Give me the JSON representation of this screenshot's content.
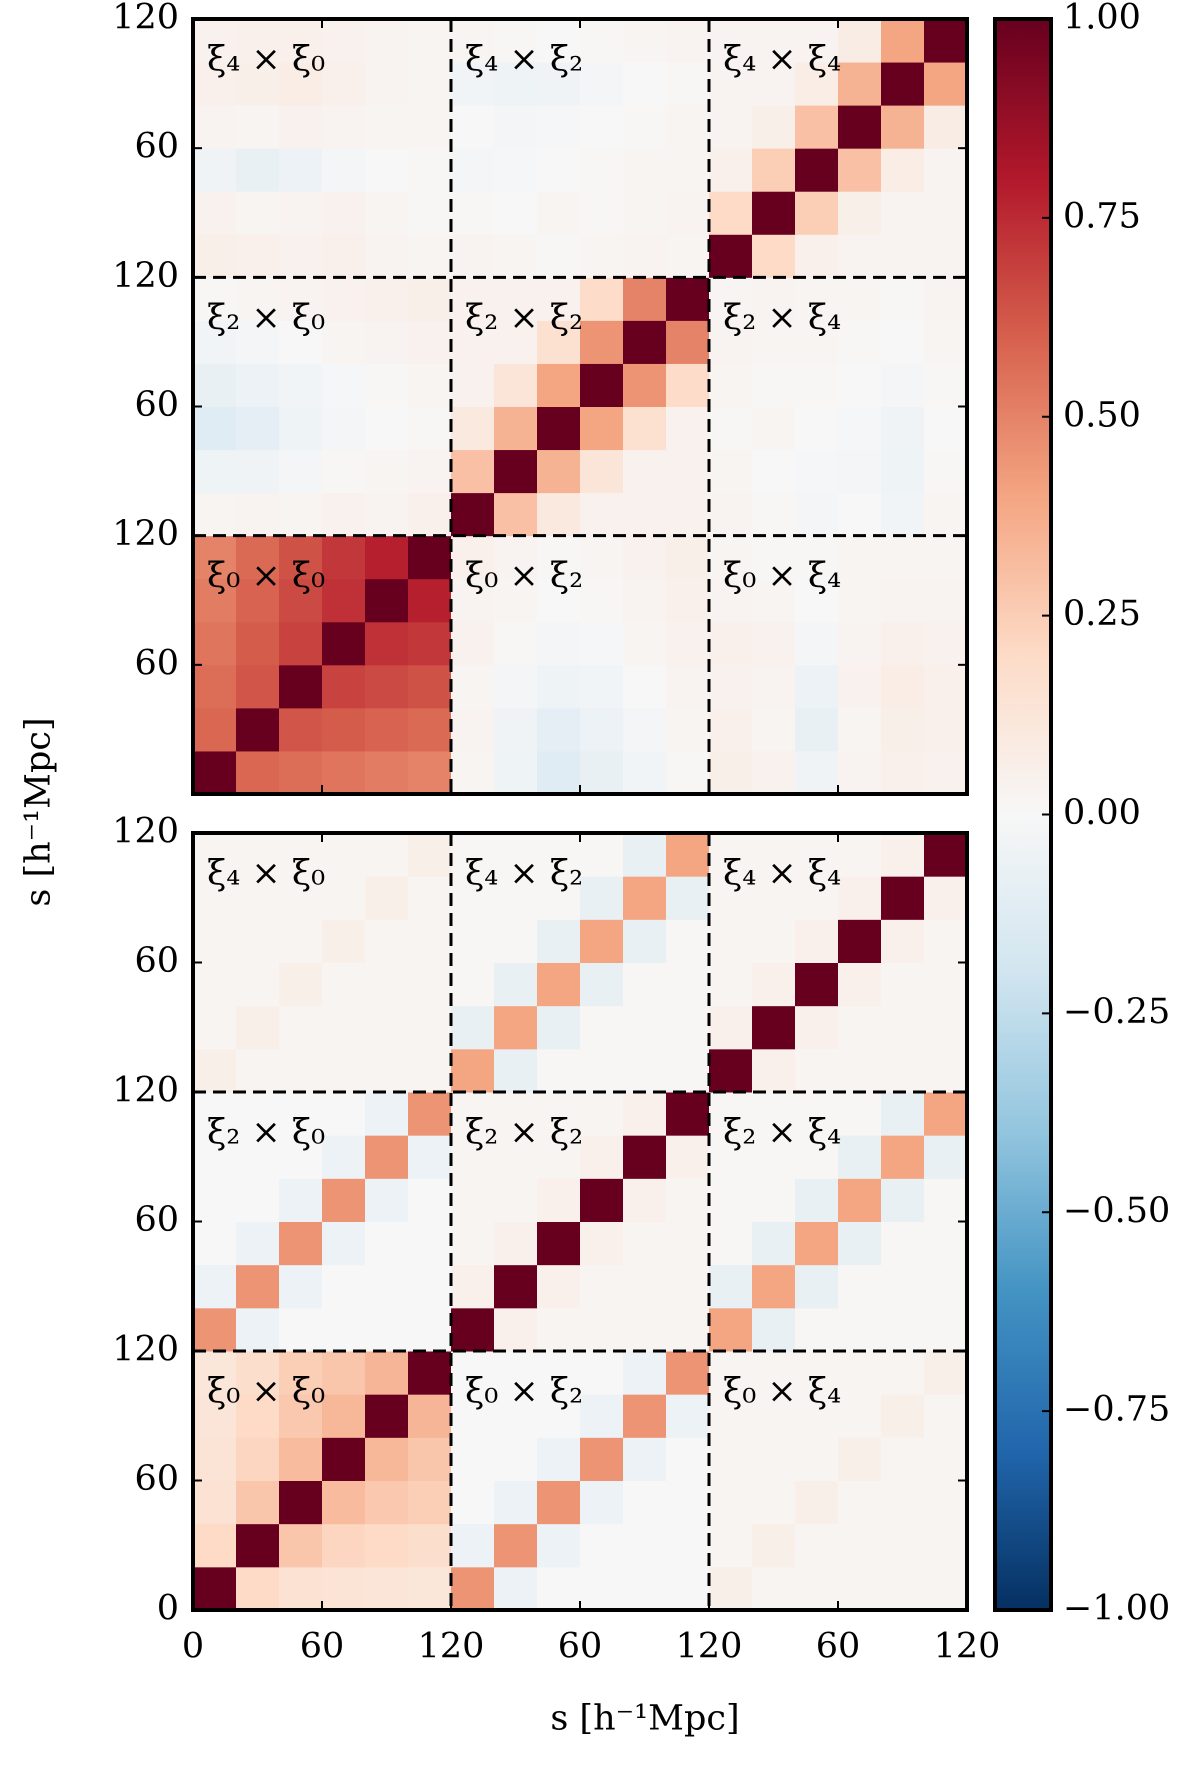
{
  "chart_data": [
    {
      "type": "heatmap",
      "xlim": [
        0,
        360
      ],
      "ylim": [
        0,
        360
      ],
      "yticks": [
        60,
        120,
        {
          "value": 180,
          "label": "60"
        },
        {
          "value": 240,
          "label": "120"
        },
        {
          "value": 300,
          "label": "60"
        },
        {
          "value": 360,
          "label": "120"
        }
      ],
      "dividers": [
        120,
        240
      ],
      "annotations": [
        "ξ₄ × ξ₀",
        "ξ₄ × ξ₂",
        "ξ₄ × ξ₄",
        "ξ₂ × ξ₀",
        "ξ₂ × ξ₂",
        "ξ₂ × ξ₄",
        "ξ₀ × ξ₀",
        "ξ₀ × ξ₂",
        "ξ₀ × ξ₄"
      ],
      "values": [
        [
          1,
          0.58,
          0.56,
          0.54,
          0.52,
          0.5,
          0.02,
          -0.05,
          -0.12,
          -0.08,
          -0.03,
          0.01,
          0.06,
          0.04,
          -0.04,
          0.03,
          0.05,
          0.04
        ],
        [
          0.58,
          1,
          0.63,
          0.61,
          0.59,
          0.57,
          0.03,
          -0.04,
          -0.1,
          -0.06,
          -0.02,
          0.02,
          0.05,
          0.02,
          -0.08,
          0.02,
          0.06,
          0.05
        ],
        [
          0.56,
          0.63,
          1,
          0.68,
          0.66,
          0.64,
          0.02,
          -0.02,
          -0.05,
          -0.03,
          0,
          0.03,
          0.04,
          0.03,
          -0.06,
          0.04,
          0.07,
          0.05
        ],
        [
          0.54,
          0.61,
          0.68,
          1,
          0.73,
          0.71,
          0.04,
          0.01,
          -0.02,
          -0.01,
          0.02,
          0.04,
          0.05,
          0.04,
          -0.02,
          0.03,
          0.05,
          0.04
        ],
        [
          0.52,
          0.59,
          0.66,
          0.73,
          1,
          0.78,
          0.03,
          0.02,
          0,
          0.01,
          0.03,
          0.05,
          0.03,
          0.02,
          0,
          0.02,
          0.03,
          0.03
        ],
        [
          0.5,
          0.57,
          0.64,
          0.71,
          0.78,
          1,
          0.05,
          0.03,
          0.01,
          0.02,
          0.04,
          0.06,
          0.02,
          0.01,
          0.01,
          0.02,
          0.02,
          0.02
        ],
        [
          0.02,
          0.03,
          0.02,
          0.04,
          0.03,
          0.05,
          1,
          0.3,
          0.1,
          0.04,
          0.04,
          0.04,
          0.03,
          0.01,
          -0.02,
          0,
          -0.03,
          0.02
        ],
        [
          -0.05,
          -0.04,
          -0.02,
          0.01,
          0.02,
          0.03,
          0.3,
          1,
          0.35,
          0.13,
          0.04,
          0.04,
          0.02,
          0,
          -0.01,
          -0.02,
          -0.05,
          0.01
        ],
        [
          -0.12,
          -0.1,
          -0.05,
          -0.02,
          0,
          0.01,
          0.1,
          0.35,
          1,
          0.4,
          0.16,
          0.04,
          0.01,
          0.02,
          0,
          -0.01,
          -0.04,
          0
        ],
        [
          -0.08,
          -0.06,
          -0.03,
          -0.01,
          0.01,
          0.02,
          0.04,
          0.13,
          0.4,
          1,
          0.45,
          0.19,
          0.02,
          0.01,
          0.01,
          0,
          -0.02,
          0.01
        ],
        [
          -0.03,
          -0.02,
          0,
          0.02,
          0.03,
          0.04,
          0.04,
          0.04,
          0.16,
          0.45,
          1,
          0.5,
          0.03,
          0.02,
          0.02,
          0.01,
          0,
          0.02
        ],
        [
          0.01,
          0.02,
          0.03,
          0.04,
          0.05,
          0.06,
          0.04,
          0.04,
          0.04,
          0.19,
          0.5,
          1,
          0.02,
          0.03,
          0.02,
          0.02,
          0.01,
          0.03
        ],
        [
          0.06,
          0.05,
          0.04,
          0.05,
          0.03,
          0.02,
          0.03,
          0.02,
          0.01,
          0.02,
          0.03,
          0.02,
          1,
          0.2,
          0.05,
          0.03,
          0.03,
          0.03
        ],
        [
          0.04,
          0.02,
          0.03,
          0.04,
          0.02,
          0.01,
          0.01,
          0,
          0.02,
          0.01,
          0.02,
          0.03,
          0.2,
          1,
          0.25,
          0.06,
          0.03,
          0.03
        ],
        [
          -0.04,
          -0.08,
          -0.06,
          -0.02,
          0,
          0.01,
          -0.02,
          -0.01,
          0,
          0.01,
          0.02,
          0.02,
          0.05,
          0.25,
          1,
          0.3,
          0.07,
          0.03
        ],
        [
          0.03,
          0.02,
          0.04,
          0.03,
          0.02,
          0.02,
          0,
          -0.02,
          -0.01,
          0,
          0.01,
          0.02,
          0.03,
          0.06,
          0.3,
          1,
          0.35,
          0.08
        ],
        [
          0.05,
          0.06,
          0.07,
          0.05,
          0.03,
          0.02,
          -0.03,
          -0.05,
          -0.04,
          -0.02,
          0,
          0.01,
          0.03,
          0.03,
          0.07,
          0.35,
          1,
          0.4
        ],
        [
          0.04,
          0.05,
          0.05,
          0.04,
          0.03,
          0.02,
          0.02,
          0.01,
          0,
          0.01,
          0.02,
          0.03,
          0.03,
          0.03,
          0.03,
          0.08,
          0.4,
          1
        ]
      ]
    },
    {
      "type": "heatmap",
      "xlim": [
        0,
        360
      ],
      "ylim": [
        0,
        360
      ],
      "xticks": [
        0,
        60,
        120,
        {
          "value": 180,
          "label": "60"
        },
        {
          "value": 240,
          "label": "120"
        },
        {
          "value": 300,
          "label": "60"
        },
        {
          "value": 360,
          "label": "120"
        }
      ],
      "yticks": [
        0,
        60,
        120,
        {
          "value": 180,
          "label": "60"
        },
        {
          "value": 240,
          "label": "120"
        },
        {
          "value": 300,
          "label": "60"
        },
        {
          "value": 360,
          "label": "120"
        }
      ],
      "dividers": [
        120,
        240
      ],
      "annotations": [
        "ξ₄ × ξ₀",
        "ξ₄ × ξ₂",
        "ξ₄ × ξ₄",
        "ξ₂ × ξ₀",
        "ξ₂ × ξ₂",
        "ξ₂ × ξ₄",
        "ξ₀ × ξ₀",
        "ξ₀ × ξ₂",
        "ξ₀ × ξ₄"
      ],
      "values": [
        [
          1,
          0.2,
          0.15,
          0.14,
          0.13,
          0.12,
          0.45,
          -0.06,
          0,
          0,
          0,
          0,
          0.06,
          0.02,
          0.02,
          0.02,
          0.02,
          0.02
        ],
        [
          0.2,
          1,
          0.28,
          0.22,
          0.2,
          0.18,
          -0.06,
          0.45,
          -0.06,
          0,
          0,
          0,
          0.02,
          0.06,
          0.02,
          0.02,
          0.02,
          0.02
        ],
        [
          0.15,
          0.28,
          1,
          0.32,
          0.27,
          0.25,
          0,
          -0.06,
          0.45,
          -0.06,
          0,
          0,
          0.02,
          0.02,
          0.06,
          0.02,
          0.02,
          0.02
        ],
        [
          0.14,
          0.22,
          0.32,
          1,
          0.33,
          0.28,
          0,
          0,
          -0.06,
          0.45,
          -0.06,
          0,
          0.02,
          0.02,
          0.02,
          0.06,
          0.02,
          0.02
        ],
        [
          0.13,
          0.2,
          0.27,
          0.33,
          1,
          0.34,
          0,
          0,
          0,
          -0.06,
          0.45,
          -0.06,
          0.02,
          0.02,
          0.02,
          0.02,
          0.06,
          0.02
        ],
        [
          0.12,
          0.18,
          0.25,
          0.28,
          0.34,
          1,
          0,
          0,
          0,
          0,
          -0.06,
          0.45,
          0.02,
          0.02,
          0.02,
          0.02,
          0.02,
          0.06
        ],
        [
          0.45,
          -0.06,
          0,
          0,
          0,
          0,
          1,
          0.05,
          0.02,
          0.02,
          0.02,
          0.02,
          0.4,
          -0.08,
          0.01,
          0.01,
          0.01,
          0.01
        ],
        [
          -0.06,
          0.45,
          -0.06,
          0,
          0,
          0,
          0.05,
          1,
          0.05,
          0.02,
          0.02,
          0.02,
          -0.08,
          0.4,
          -0.08,
          0.01,
          0.01,
          0.01
        ],
        [
          0,
          -0.06,
          0.45,
          -0.06,
          0,
          0,
          0.02,
          0.05,
          1,
          0.05,
          0.02,
          0.02,
          0.01,
          -0.08,
          0.4,
          -0.08,
          0.01,
          0.01
        ],
        [
          0,
          0,
          -0.06,
          0.45,
          -0.06,
          0,
          0.02,
          0.02,
          0.05,
          1,
          0.05,
          0.02,
          0.01,
          0.01,
          -0.08,
          0.4,
          -0.08,
          0.01
        ],
        [
          0,
          0,
          0,
          -0.06,
          0.45,
          -0.06,
          0.02,
          0.02,
          0.02,
          0.05,
          1,
          0.05,
          0.01,
          0.01,
          0.01,
          -0.08,
          0.4,
          -0.08
        ],
        [
          0,
          0,
          0,
          0,
          -0.06,
          0.45,
          0.02,
          0.02,
          0.02,
          0.02,
          0.05,
          1,
          0.01,
          0.01,
          0.01,
          0.01,
          -0.08,
          0.4
        ],
        [
          0.06,
          0.02,
          0.02,
          0.02,
          0.02,
          0.02,
          0.4,
          -0.08,
          0.01,
          0.01,
          0.01,
          0.01,
          1,
          0.05,
          0.02,
          0.02,
          0.02,
          0.02
        ],
        [
          0.02,
          0.06,
          0.02,
          0.02,
          0.02,
          0.02,
          -0.08,
          0.4,
          -0.08,
          0.01,
          0.01,
          0.01,
          0.05,
          1,
          0.05,
          0.02,
          0.02,
          0.02
        ],
        [
          0.02,
          0.02,
          0.06,
          0.02,
          0.02,
          0.02,
          0.01,
          -0.08,
          0.4,
          -0.08,
          0.01,
          0.01,
          0.02,
          0.05,
          1,
          0.05,
          0.02,
          0.02
        ],
        [
          0.02,
          0.02,
          0.02,
          0.06,
          0.02,
          0.02,
          0.01,
          0.01,
          -0.08,
          0.4,
          -0.08,
          0.01,
          0.02,
          0.02,
          0.05,
          1,
          0.05,
          0.02
        ],
        [
          0.02,
          0.02,
          0.02,
          0.02,
          0.06,
          0.02,
          0.01,
          0.01,
          0.01,
          -0.08,
          0.4,
          -0.08,
          0.02,
          0.02,
          0.02,
          0.05,
          1,
          0.05
        ],
        [
          0.02,
          0.02,
          0.02,
          0.02,
          0.02,
          0.06,
          0.01,
          0.01,
          0.01,
          0.01,
          -0.08,
          0.4,
          0.02,
          0.02,
          0.02,
          0.02,
          0.05,
          1
        ]
      ]
    }
  ],
  "colorbar": {
    "lim": [
      -1,
      1
    ],
    "colors": [
      "#053061",
      "#2166ac",
      "#4393c3",
      "#92c5de",
      "#d1e5f0",
      "#f7f7f7",
      "#fddbc7",
      "#f4a582",
      "#d6604d",
      "#b2182b",
      "#67001f"
    ],
    "ticks": [
      {
        "value": 1,
        "label": "1.00"
      },
      0.75,
      {
        "value": 0.5,
        "label": "0.50"
      },
      0.25,
      {
        "value": 0,
        "label": "0.00"
      },
      {
        "value": -0.25,
        "label": "−0.25"
      },
      {
        "value": -0.5,
        "label": "−0.50"
      },
      {
        "value": -0.75,
        "label": "−0.75"
      },
      {
        "value": -1,
        "label": "−1.00"
      }
    ]
  },
  "xlabel": "s [h⁻¹Mpc]",
  "ylabel": "s [h⁻¹Mpc]"
}
